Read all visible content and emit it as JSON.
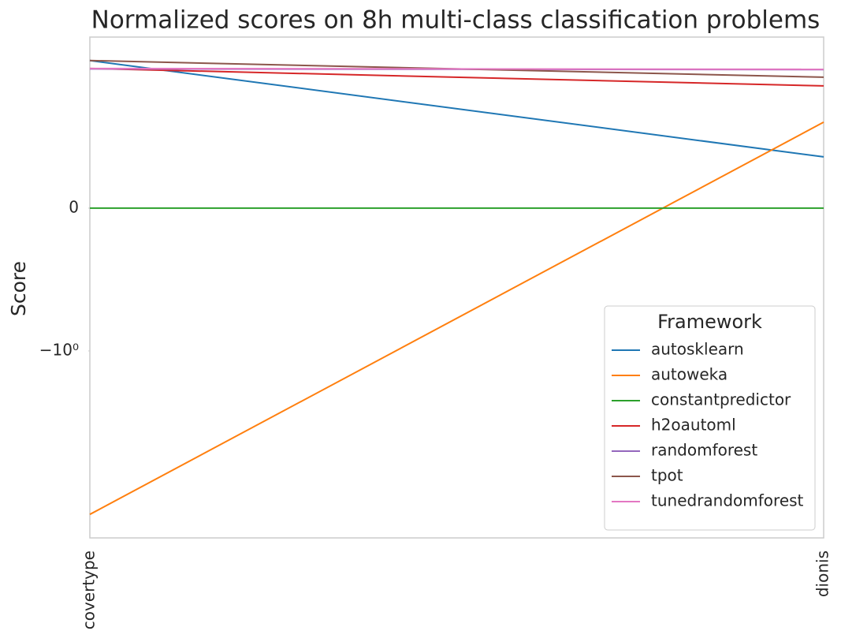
{
  "chart_data": {
    "type": "line",
    "title": "Normalized scores on 8h multi-class classification problems",
    "y_label": "Score",
    "categories": [
      "covertype",
      "dionis"
    ],
    "series": [
      {
        "name": "autosklearn",
        "color": "#1f77b4",
        "values": [
          1.09,
          0.359
        ]
      },
      {
        "name": "autoweka",
        "color": "#ff7f0e",
        "values": [
          -18.7,
          0.602
        ]
      },
      {
        "name": "constantpredictor",
        "color": "#2ca02c",
        "values": [
          0,
          0
        ]
      },
      {
        "name": "h2oautoml",
        "color": "#d62728",
        "values": [
          0.978,
          0.856
        ]
      },
      {
        "name": "randomforest",
        "color": "#9467bd",
        "values": [
          0.975,
          0.97
        ]
      },
      {
        "name": "tpot",
        "color": "#8c564b",
        "values": [
          1.09,
          0.917
        ]
      },
      {
        "name": "tunedrandomforest",
        "color": "#e377c2",
        "values": [
          0.978,
          0.972
        ]
      }
    ],
    "yscale": "symlog",
    "linthresh": 1,
    "ylim": [
      -28.5,
      1.66
    ],
    "yticks": [
      0,
      {
        "value": -1,
        "label": "−10⁰"
      }
    ],
    "grid": false,
    "legend_title": "Framework",
    "legend_position": "lower right"
  }
}
